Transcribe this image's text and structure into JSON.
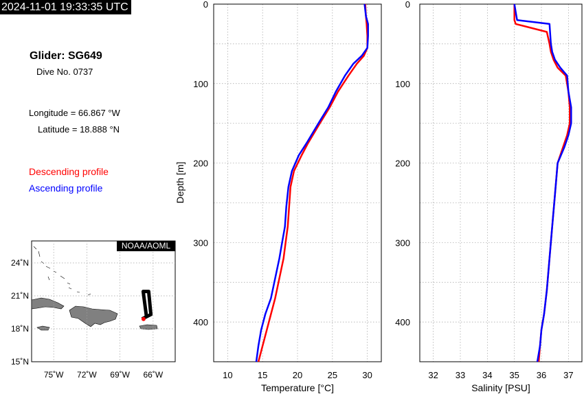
{
  "header": {
    "timestamp": "2024-11-01 19:33:35 UTC"
  },
  "info": {
    "glider": "Glider: SG649",
    "dive": "Dive No. 0737",
    "longitude": "Longitude = 66.867 °W",
    "latitude": "Latitude = 18.888 °N",
    "legend_descending": "Descending profile",
    "legend_ascending": "Ascending profile"
  },
  "colors": {
    "descending": "#ff0000",
    "ascending": "#0000ff",
    "land": "#808080",
    "track": "#000000",
    "position": "#ff0000"
  },
  "map": {
    "credit": "NOAA/AOML",
    "lat_ticks": [
      "24˚N",
      "21˚N",
      "18˚N",
      "15˚N"
    ],
    "lon_ticks": [
      "75˚W",
      "72˚W",
      "69˚W",
      "66˚W"
    ],
    "lat_values": [
      24,
      21,
      18,
      15
    ],
    "lon_values": [
      -75,
      -72,
      -69,
      -66
    ],
    "lon_range": [
      -77,
      -64
    ],
    "lat_range": [
      15,
      26
    ],
    "track": [
      [
        -66.6,
        19.1
      ],
      [
        -66.9,
        21.4
      ],
      [
        -66.4,
        21.4
      ],
      [
        -66.2,
        19.3
      ],
      [
        -67.0,
        18.9
      ]
    ],
    "position": [
      -66.867,
      18.888
    ]
  },
  "chart_data": [
    {
      "type": "line",
      "xlabel": "Temperature [°C]",
      "ylabel": "Depth [m]",
      "xlim": [
        8,
        32
      ],
      "ylim": [
        450,
        0
      ],
      "xticks": [
        10,
        15,
        20,
        25,
        30
      ],
      "yticks": [
        0,
        100,
        200,
        300,
        400
      ],
      "grid": true,
      "series": [
        {
          "name": "Descending profile",
          "color": "#ff0000",
          "x": [
            29.7,
            29.8,
            29.9,
            30.0,
            30.0,
            29.5,
            28.5,
            27.3,
            25.8,
            24.6,
            23.2,
            21.5,
            20.6,
            19.5,
            19.0,
            18.8,
            18.6,
            18.3,
            18.0,
            17.4,
            16.8,
            16.2,
            15.6,
            15.0,
            14.4
          ],
          "y": [
            0,
            15,
            25,
            40,
            55,
            65,
            75,
            90,
            110,
            130,
            150,
            175,
            190,
            210,
            230,
            255,
            280,
            300,
            320,
            345,
            370,
            390,
            410,
            430,
            450
          ]
        },
        {
          "name": "Ascending profile",
          "color": "#0000ff",
          "x": [
            29.6,
            29.8,
            30.1,
            30.1,
            30.0,
            29.2,
            28.0,
            26.8,
            25.5,
            24.4,
            23.0,
            21.3,
            20.2,
            19.2,
            18.7,
            18.4,
            18.2,
            17.8,
            17.4,
            16.8,
            16.2,
            15.4,
            14.8,
            14.4,
            14.1
          ],
          "y": [
            0,
            15,
            25,
            40,
            55,
            65,
            75,
            90,
            110,
            130,
            150,
            175,
            190,
            210,
            230,
            255,
            280,
            300,
            320,
            345,
            370,
            390,
            410,
            430,
            450
          ]
        }
      ]
    },
    {
      "type": "line",
      "xlabel": "Salinity [PSU]",
      "ylabel": "",
      "xlim": [
        31.5,
        37.5
      ],
      "ylim": [
        450,
        0
      ],
      "xticks": [
        32,
        33,
        34,
        35,
        36,
        37
      ],
      "yticks": [
        0,
        100,
        200,
        300,
        400
      ],
      "grid": true,
      "series": [
        {
          "name": "Descending profile",
          "color": "#ff0000",
          "x": [
            35.0,
            35.0,
            35.05,
            36.2,
            36.3,
            36.35,
            36.45,
            36.6,
            36.9,
            37.0,
            37.05,
            37.05,
            36.95,
            36.8,
            36.6,
            36.5,
            36.4,
            36.3,
            36.2,
            36.1,
            36.0,
            35.95,
            35.9
          ],
          "y": [
            0,
            20,
            25,
            35,
            50,
            60,
            70,
            80,
            90,
            110,
            130,
            150,
            165,
            180,
            200,
            240,
            280,
            320,
            360,
            390,
            410,
            430,
            450
          ]
        },
        {
          "name": "Ascending profile",
          "color": "#0000ff",
          "x": [
            35.0,
            35.05,
            35.1,
            36.3,
            36.35,
            36.4,
            36.5,
            36.7,
            36.95,
            37.0,
            37.1,
            37.1,
            37.0,
            36.85,
            36.6,
            36.5,
            36.4,
            36.3,
            36.2,
            36.1,
            36.0,
            35.95,
            35.85
          ],
          "y": [
            0,
            10,
            20,
            25,
            50,
            60,
            70,
            80,
            90,
            110,
            130,
            150,
            165,
            180,
            200,
            240,
            280,
            320,
            360,
            390,
            410,
            430,
            450
          ]
        }
      ]
    }
  ]
}
